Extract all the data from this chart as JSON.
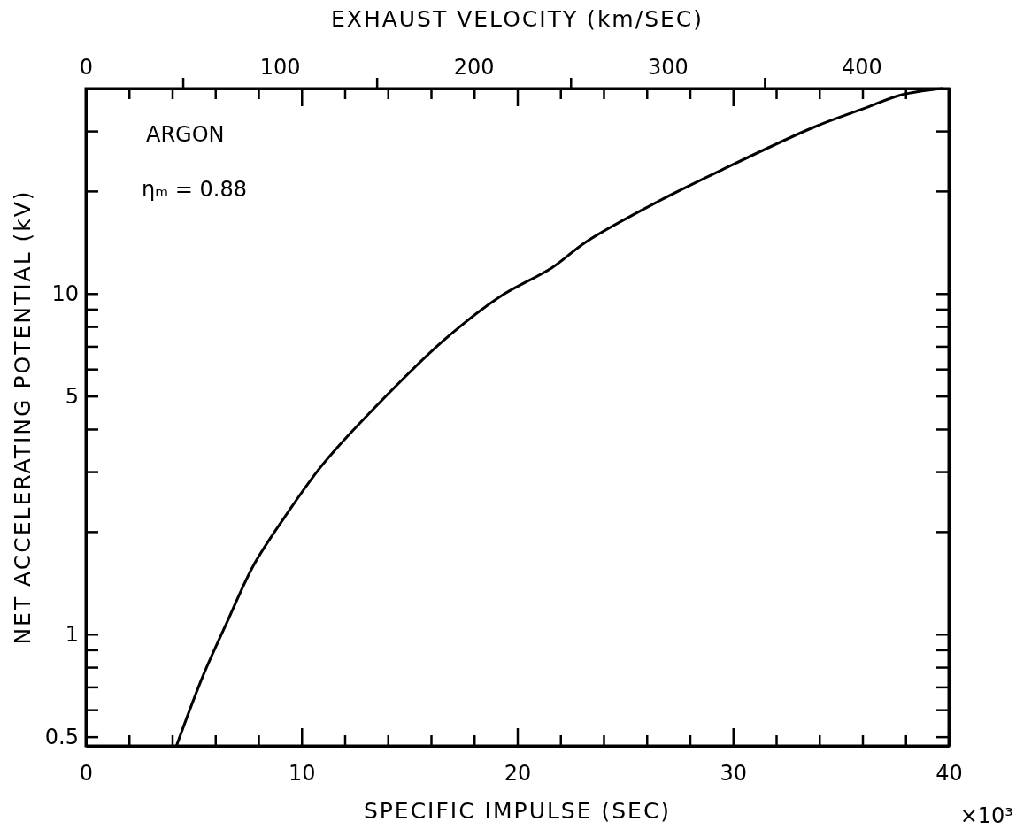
{
  "chart_data": {
    "type": "line",
    "xlabel": "SPECIFIC IMPULSE (SEC)",
    "x2label": "EXHAUST VELOCITY (km/SEC)",
    "ylabel": "NET ACCELERATING POTENTIAL (kV)",
    "annotations": [
      "ARGON",
      "ηₘ = 0.88",
      "×10³"
    ],
    "log": "y",
    "grid": false,
    "marker": "none",
    "line_style": "solid",
    "xlim": [
      0,
      40
    ],
    "xticks": [
      0,
      {
        "value": 2,
        "label": null
      },
      {
        "value": 4,
        "label": null
      },
      {
        "value": 6,
        "label": null
      },
      {
        "value": 8,
        "label": null
      },
      10,
      {
        "value": 12,
        "label": null
      },
      {
        "value": 14,
        "label": null
      },
      {
        "value": 16,
        "label": null
      },
      {
        "value": 18,
        "label": null
      },
      20,
      {
        "value": 22,
        "label": null
      },
      {
        "value": 24,
        "label": null
      },
      {
        "value": 26,
        "label": null
      },
      {
        "value": 28,
        "label": null
      },
      30,
      {
        "value": 32,
        "label": null
      },
      {
        "value": 34,
        "label": null
      },
      {
        "value": 36,
        "label": null
      },
      {
        "value": 38,
        "label": null
      },
      40
    ],
    "x2lim": [
      0,
      445
    ],
    "x2ticks": [
      0,
      {
        "value": 50,
        "label": null
      },
      100,
      {
        "value": 150,
        "label": null
      },
      200,
      {
        "value": 250,
        "label": null
      },
      300,
      {
        "value": 350,
        "label": null
      },
      400
    ],
    "ylim": [
      0.47,
      40
    ],
    "yticks": [
      {
        "value": 0.5,
        "label": "0.5"
      },
      {
        "value": 0.6,
        "label": null
      },
      {
        "value": 0.7,
        "label": null
      },
      {
        "value": 0.8,
        "label": null
      },
      {
        "value": 0.9,
        "label": null
      },
      1,
      {
        "value": 2,
        "label": null
      },
      {
        "value": 3,
        "label": null
      },
      {
        "value": 4,
        "label": null
      },
      5,
      {
        "value": 6,
        "label": null
      },
      {
        "value": 7,
        "label": null
      },
      {
        "value": 8,
        "label": null
      },
      {
        "value": 9,
        "label": null
      },
      10,
      {
        "value": 20,
        "label": null
      },
      {
        "value": 30,
        "label": null
      }
    ],
    "series": [
      {
        "color": "#000000",
        "x": [
          4.2,
          5.45,
          6.56,
          7.79,
          9.39,
          11.0,
          13.4,
          16.6,
          19.2,
          21.6,
          23.2,
          26.5,
          29.5,
          33.7,
          36.1,
          37.8,
          39.7
        ],
        "values": [
          0.47,
          0.76,
          1.09,
          1.6,
          2.29,
          3.16,
          4.63,
          7.3,
          9.8,
          11.9,
          14.2,
          18.6,
          23.1,
          30.7,
          35,
          38.3,
          40
        ]
      }
    ]
  }
}
